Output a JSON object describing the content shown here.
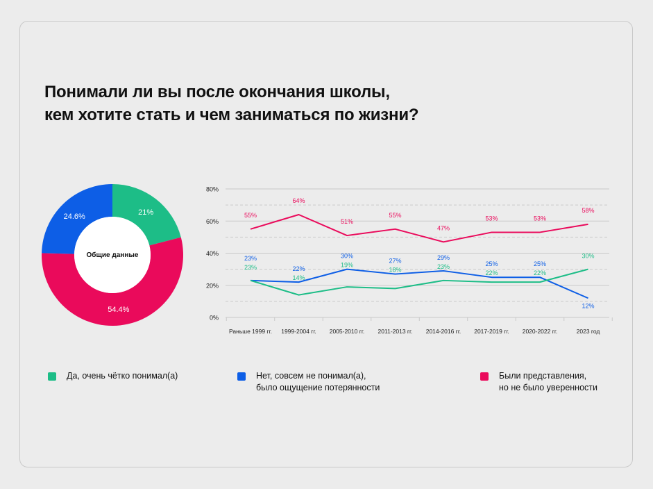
{
  "title": {
    "line1": "Понимали ли вы после окончания школы,",
    "line2": "кем хотите стать и чем заниматься по жизни?"
  },
  "colors": {
    "green": "#1dbd87",
    "blue": "#0d5ee6",
    "red": "#ea0a5b",
    "grid": "#c9c9c9",
    "axis_text": "#222222"
  },
  "legend": [
    {
      "lines": [
        "Да, очень чётко понимал(а)"
      ],
      "color": "#1dbd87"
    },
    {
      "lines": [
        "Нет, совсем не понимал(а),",
        "было ощущение потерянности"
      ],
      "color": "#0d5ee6"
    },
    {
      "lines": [
        "Были представления,",
        "но не было уверенности"
      ],
      "color": "#ea0a5b"
    }
  ],
  "chart_data": [
    {
      "type": "pie",
      "variant": "donut",
      "center_label": "Общие данные",
      "slices": [
        {
          "value": 21,
          "label": "21%",
          "color": "#1dbd87"
        },
        {
          "value": 54.4,
          "label": "54.4%",
          "color": "#ea0a5b"
        },
        {
          "value": 24.6,
          "label": "24.6%",
          "color": "#0d5ee6"
        }
      ]
    },
    {
      "type": "line",
      "categories": [
        "Раньше 1999 гг.",
        "1999-2004 гг.",
        "2005-2010 гг.",
        "2011-2013 гг.",
        "2014-2016 гг.",
        "2017-2019 гг.",
        "2020-2022 гг.",
        "2023 год"
      ],
      "ylim": [
        0,
        80
      ],
      "yticks": [
        {
          "value": 0,
          "label": "0%"
        },
        {
          "value": 20,
          "label": "20%"
        },
        {
          "value": 40,
          "label": "40%"
        },
        {
          "value": 60,
          "label": "60%"
        },
        {
          "value": 80,
          "label": "80%"
        }
      ],
      "grid": true,
      "series": [
        {
          "color": "#ea0a5b",
          "values": [
            55,
            64,
            51,
            55,
            47,
            53,
            53,
            58
          ],
          "labels": [
            "55%",
            "64%",
            "51%",
            "55%",
            "47%",
            "53%",
            "53%",
            "58%"
          ]
        },
        {
          "color": "#0d5ee6",
          "values": [
            23,
            22,
            30,
            27,
            29,
            25,
            25,
            12
          ],
          "labels": [
            "23%",
            "22%",
            "30%",
            "27%",
            "29%",
            "25%",
            "25%",
            "12%"
          ]
        },
        {
          "color": "#1dbd87",
          "values": [
            23,
            14,
            19,
            18,
            23,
            22,
            22,
            30
          ],
          "labels": [
            "23%",
            "14%",
            "19%",
            "18%",
            "23%",
            "22%",
            "22%",
            "30%"
          ]
        }
      ]
    }
  ]
}
